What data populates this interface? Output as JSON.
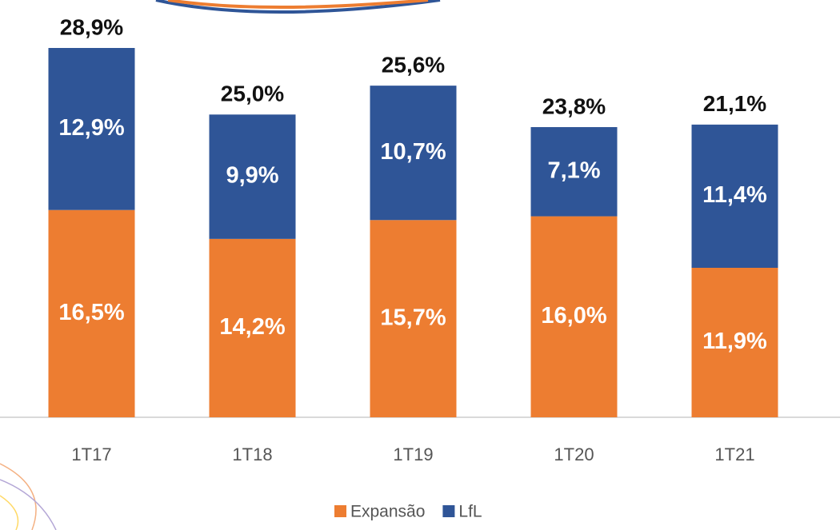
{
  "chart_data": {
    "type": "stacked-bar",
    "categories": [
      "1T17",
      "1T18",
      "1T19",
      "1T20",
      "1T21"
    ],
    "series": [
      {
        "name": "Expansão",
        "color": "#ED7D31",
        "values": [
          16.5,
          14.2,
          15.7,
          16.0,
          11.9
        ],
        "value_labels": [
          "16,5%",
          "14,2%",
          "15,7%",
          "16,0%",
          "11,9%"
        ]
      },
      {
        "name": "LfL",
        "color": "#2F5597",
        "values": [
          12.9,
          9.9,
          10.7,
          7.1,
          11.4
        ],
        "value_labels": [
          "12,9%",
          "9,9%",
          "10,7%",
          "7,1%",
          "11,4%"
        ]
      }
    ],
    "totals": {
      "values": [
        28.9,
        25.0,
        25.6,
        23.8,
        21.1
      ],
      "value_labels": [
        "28,9%",
        "25,0%",
        "25,6%",
        "23,8%",
        "21,1%"
      ]
    }
  }
}
